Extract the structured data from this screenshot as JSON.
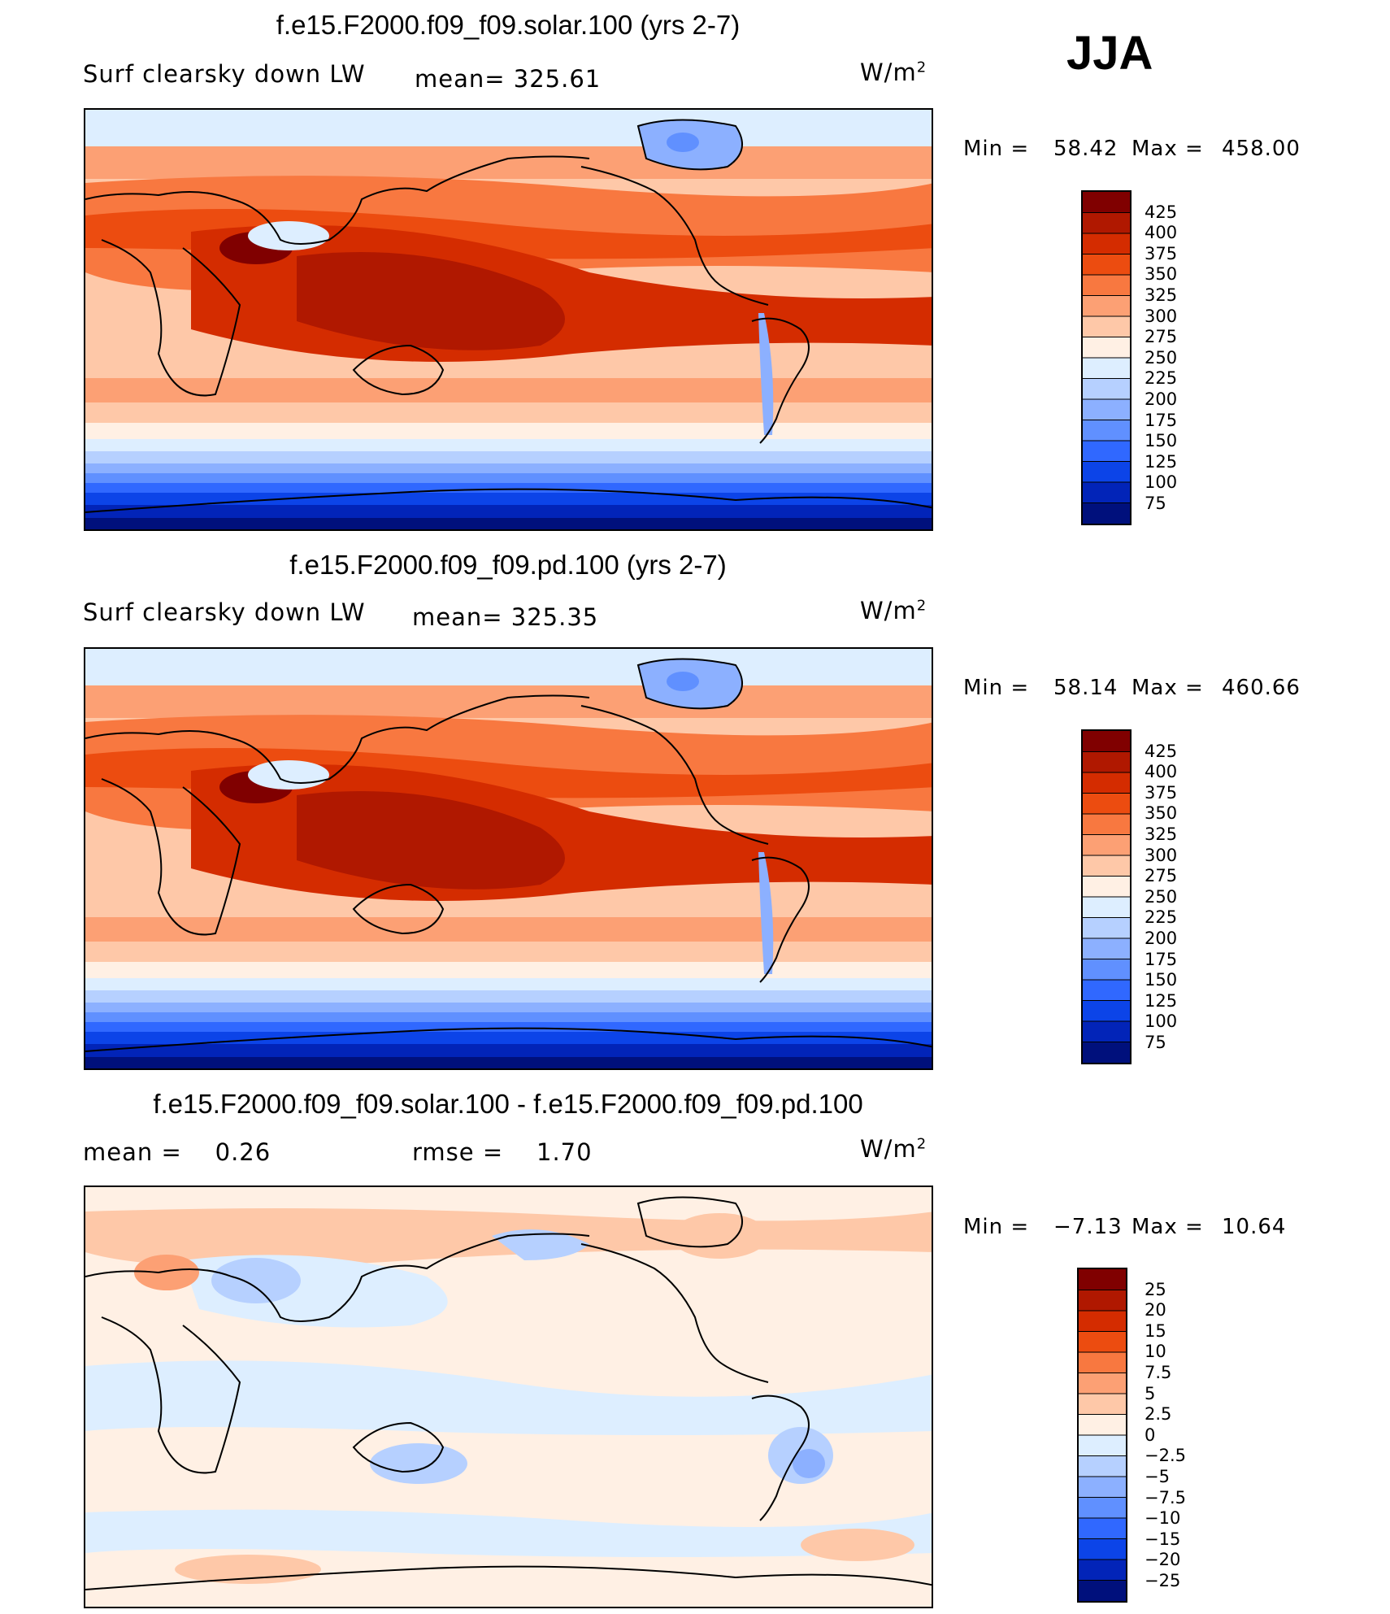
{
  "season": "JJA",
  "panels": [
    {
      "title": "f.e15.F2000.f09_f09.solar.100 (yrs 2-7)",
      "left_text": "Surf clearsky down LW",
      "middle_text": "mean= 325.61",
      "units_base": "W/m",
      "units_exp": "2",
      "min_label": "Min =",
      "min_value": "58.42",
      "max_label": "Max =",
      "max_value": "458.00",
      "colorbar_labels": [
        "425",
        "400",
        "375",
        "350",
        "325",
        "300",
        "275",
        "250",
        "225",
        "200",
        "175",
        "150",
        "125",
        "100",
        "75"
      ],
      "colorbar_colors": [
        "#800000",
        "#b01800",
        "#d42c00",
        "#ec4c10",
        "#f87840",
        "#fca074",
        "#fec8a8",
        "#fff0e4",
        "#ddeeff",
        "#b6d0ff",
        "#8cb0ff",
        "#6090ff",
        "#3068ff",
        "#0c44e8",
        "#0224b8",
        "#00107c"
      ]
    },
    {
      "title": "f.e15.F2000.f09_f09.pd.100 (yrs 2-7)",
      "left_text": "Surf clearsky down LW",
      "middle_text": "mean= 325.35",
      "units_base": "W/m",
      "units_exp": "2",
      "min_label": "Min =",
      "min_value": "58.14",
      "max_label": "Max =",
      "max_value": "460.66",
      "colorbar_labels": [
        "425",
        "400",
        "375",
        "350",
        "325",
        "300",
        "275",
        "250",
        "225",
        "200",
        "175",
        "150",
        "125",
        "100",
        "75"
      ],
      "colorbar_colors": [
        "#800000",
        "#b01800",
        "#d42c00",
        "#ec4c10",
        "#f87840",
        "#fca074",
        "#fec8a8",
        "#fff0e4",
        "#ddeeff",
        "#b6d0ff",
        "#8cb0ff",
        "#6090ff",
        "#3068ff",
        "#0c44e8",
        "#0224b8",
        "#00107c"
      ]
    },
    {
      "title": "f.e15.F2000.f09_f09.solar.100 - f.e15.F2000.f09_f09.pd.100",
      "left_text": "mean =    0.26",
      "middle_text": "rmse =    1.70",
      "units_base": "W/m",
      "units_exp": "2",
      "min_label": "Min =",
      "min_value": "−7.13",
      "max_label": "Max =",
      "max_value": "10.64",
      "colorbar_labels": [
        "25",
        "20",
        "15",
        "10",
        "7.5",
        "5",
        "2.5",
        "0",
        "−2.5",
        "−5",
        "−7.5",
        "−10",
        "−15",
        "−20",
        "−25"
      ],
      "colorbar_colors": [
        "#800000",
        "#b01800",
        "#d42c00",
        "#ec4c10",
        "#f87840",
        "#fca074",
        "#fec8a8",
        "#fff0e4",
        "#ddeeff",
        "#b6d0ff",
        "#8cb0ff",
        "#6090ff",
        "#3068ff",
        "#0c44e8",
        "#0224b8",
        "#00107c"
      ]
    }
  ]
}
